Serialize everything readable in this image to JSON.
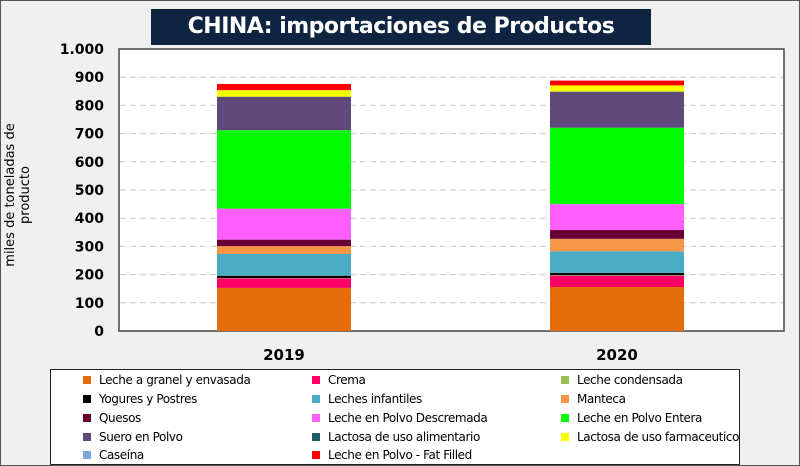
{
  "title": "CHINA: importaciones de Productos Lácteos",
  "chart_data": {
    "type": "bar",
    "stacked": true,
    "title": "CHINA: importaciones de Productos Lácteos",
    "xlabel": "",
    "ylabel": "miles de toneladas de producto",
    "ylim": [
      0,
      1000
    ],
    "yticks": [
      0,
      100,
      200,
      300,
      400,
      500,
      600,
      700,
      800,
      900,
      1000
    ],
    "ytick_labels": [
      "0",
      "100",
      "200",
      "300",
      "400",
      "500",
      "600",
      "700",
      "800",
      "900",
      "1.000"
    ],
    "grid": true,
    "legend_position": "bottom",
    "categories": [
      "2019",
      "2020"
    ],
    "series": [
      {
        "name": "Leche a granel y envasada",
        "color": "#e46c0a",
        "values": [
          153,
          156
        ]
      },
      {
        "name": "Crema",
        "color": "#ff0066",
        "values": [
          34,
          40
        ]
      },
      {
        "name": "Leche condensada",
        "color": "#9bbb59",
        "values": [
          1,
          2
        ]
      },
      {
        "name": "Yogures y Postres",
        "color": "#000000",
        "values": [
          8,
          8
        ]
      },
      {
        "name": "Leches infantiles",
        "color": "#4bacc6",
        "values": [
          77,
          77
        ]
      },
      {
        "name": "Manteca",
        "color": "#f79646",
        "values": [
          28,
          44
        ]
      },
      {
        "name": "Quesos",
        "color": "#660033",
        "values": [
          23,
          31
        ]
      },
      {
        "name": "Leche en Polvo Descremada",
        "color": "#ff5fff",
        "values": [
          110,
          92
        ]
      },
      {
        "name": "Leche en Polvo Entera",
        "color": "#00ff00",
        "values": [
          278,
          271
        ]
      },
      {
        "name": "Suero en Polvo",
        "color": "#604a7b",
        "values": [
          118,
          127
        ]
      },
      {
        "name": "Lactosa de uso alimentario",
        "color": "#215968",
        "values": [
          1,
          1
        ]
      },
      {
        "name": "Lactosa de uso farmaceutico",
        "color": "#ffff00",
        "values": [
          23,
          22
        ]
      },
      {
        "name": "Caseína",
        "color": "#7ba7d8",
        "values": [
          0,
          0
        ]
      },
      {
        "name": "Leche en Polvo - Fat Filled",
        "color": "#ff0000",
        "values": [
          22,
          17
        ]
      }
    ]
  },
  "legend_order": [
    "Leche a granel y envasada",
    "Crema",
    "Leche condensada",
    "Yogures y Postres",
    "Leches infantiles",
    "Manteca",
    "Quesos",
    "Leche en Polvo Descremada",
    "Leche en Polvo Entera",
    "Suero en Polvo",
    "Lactosa de uso alimentario",
    "Lactosa de uso farmaceutico",
    "Caseína",
    "Leche en Polvo - Fat Filled"
  ]
}
